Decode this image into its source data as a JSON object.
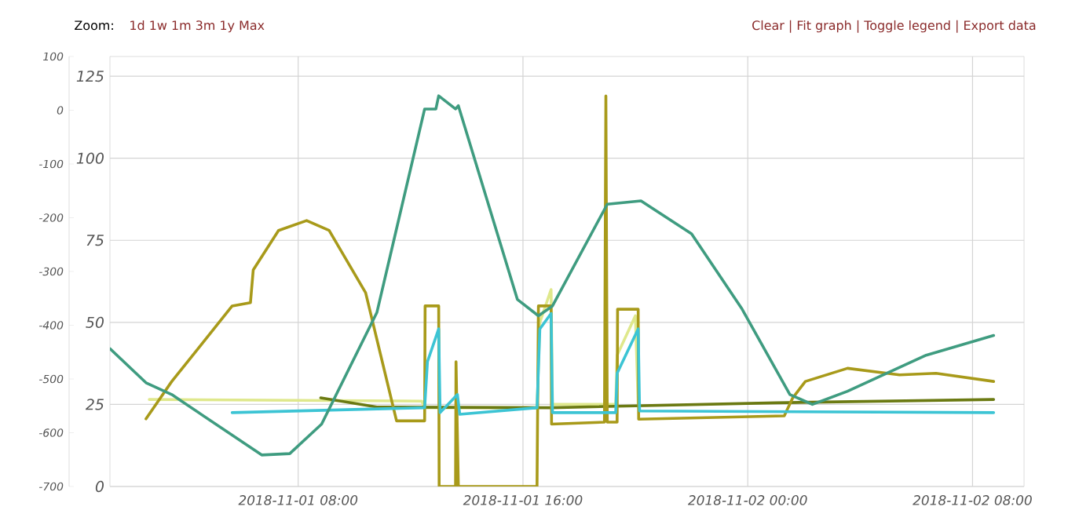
{
  "chart_data": {
    "type": "line",
    "marker": "none",
    "line_style": "solid",
    "grid": true,
    "annotations": [
      "Zoom:",
      "1d 1w 1m 3m 1y Max",
      "Clear |  Fit graph |  Toggle legend |  Export data"
    ],
    "xlim": [
      "2018-11-01T01:18",
      "2018-11-02T09:50"
    ],
    "xticks": [
      {
        "value": "2018-11-01T08:00",
        "label": "2018-11-01 08:00"
      },
      {
        "value": "2018-11-01T16:00",
        "label": "2018-11-01 16:00"
      },
      {
        "value": "2018-11-02T00:00",
        "label": "2018-11-02 00:00"
      },
      {
        "value": "2018-11-02T08:00",
        "label": "2018-11-02 08:00"
      }
    ],
    "ylim": [
      0,
      131
    ],
    "yticks": [
      0,
      25,
      50,
      75,
      100,
      125
    ],
    "y2lim": [
      -700,
      100
    ],
    "y2ticks": [
      -700,
      -600,
      -500,
      -400,
      -300,
      -200,
      -100,
      0,
      100
    ],
    "series": [
      {
        "color": "#dfe88c",
        "x": [
          "2018-11-01T02:42",
          "2018-11-01T12:24",
          "2018-11-01T12:30",
          "2018-11-01T16:30",
          "2018-11-01T16:36",
          "2018-11-01T17:00",
          "2018-11-01T17:03",
          "2018-11-01T19:18",
          "2018-11-01T19:21",
          "2018-11-01T20:00",
          "2018-11-01T20:06"
        ],
        "values": [
          26.5,
          26,
          24,
          24,
          50,
          60,
          25,
          25,
          40,
          52,
          25
        ]
      },
      {
        "color": "#6b7a12",
        "x": [
          "2018-11-01T08:48",
          "2018-11-01T10:48",
          "2018-11-01T17:00",
          "2018-11-02T01:00",
          "2018-11-02T08:45"
        ],
        "values": [
          27,
          24.2,
          24,
          25.5,
          26.5
        ]
      },
      {
        "color": "#a89a1a",
        "x": [
          "2018-11-01T02:35",
          "2018-11-01T03:30",
          "2018-11-01T05:39",
          "2018-11-01T06:18",
          "2018-11-01T06:24",
          "2018-11-01T07:18",
          "2018-11-01T08:18",
          "2018-11-01T09:06",
          "2018-11-01T10:24",
          "2018-11-01T11:30",
          "2018-11-01T12:30",
          "2018-11-01T12:31",
          "2018-11-01T13:00",
          "2018-11-01T13:01",
          "2018-11-01T13:36",
          "2018-11-01T13:37",
          "2018-11-01T13:42",
          "2018-11-01T16:30",
          "2018-11-01T16:33",
          "2018-11-01T17:00",
          "2018-11-01T17:01",
          "2018-11-01T18:54",
          "2018-11-01T18:57",
          "2018-11-01T19:00",
          "2018-11-01T19:21",
          "2018-11-01T19:22",
          "2018-11-01T20:06",
          "2018-11-01T20:07",
          "2018-11-02T01:18",
          "2018-11-02T01:36",
          "2018-11-02T02:03",
          "2018-11-02T03:33",
          "2018-11-02T05:24",
          "2018-11-02T06:42",
          "2018-11-02T08:45"
        ],
        "values": [
          20.6,
          32,
          55,
          56,
          66,
          78,
          81,
          78,
          59,
          20,
          20,
          55,
          55,
          0,
          0,
          38,
          0,
          0,
          55,
          55,
          19,
          19.6,
          119,
          19.6,
          19.6,
          54,
          54,
          20.5,
          21.5,
          27,
          32,
          36,
          34,
          34.5,
          32
        ]
      },
      {
        "color": "#3cc4d4",
        "x": [
          "2018-11-01T05:39",
          "2018-11-01T12:30",
          "2018-11-01T12:36",
          "2018-11-01T13:00",
          "2018-11-01T13:03",
          "2018-11-01T13:40",
          "2018-11-01T13:45",
          "2018-11-01T16:30",
          "2018-11-01T16:36",
          "2018-11-01T17:00",
          "2018-11-01T17:03",
          "2018-11-01T19:18",
          "2018-11-01T19:21",
          "2018-11-01T20:06",
          "2018-11-01T20:09",
          "2018-11-02T08:45"
        ],
        "values": [
          22.5,
          24,
          38,
          48,
          22.5,
          28,
          22,
          24,
          48,
          52.7,
          22.5,
          22.5,
          34.5,
          48,
          23,
          22.5
        ]
      },
      {
        "color": "#3f9c80",
        "x": [
          "2018-11-01T01:18",
          "2018-11-01T02:35",
          "2018-11-01T03:30",
          "2018-11-01T06:42",
          "2018-11-01T07:42",
          "2018-11-01T08:50",
          "2018-11-01T10:48",
          "2018-11-01T12:30",
          "2018-11-01T12:54",
          "2018-11-01T13:00",
          "2018-11-01T13:36",
          "2018-11-01T13:42",
          "2018-11-01T15:48",
          "2018-11-01T16:33",
          "2018-11-01T17:03",
          "2018-11-01T19:00",
          "2018-11-01T20:12",
          "2018-11-01T22:00",
          "2018-11-01T23:48",
          "2018-11-02T01:30",
          "2018-11-02T02:18",
          "2018-11-02T03:33",
          "2018-11-02T06:21",
          "2018-11-02T08:45"
        ],
        "values": [
          42,
          31.6,
          28,
          9.6,
          10,
          19,
          53,
          115,
          115,
          119,
          115,
          116,
          57,
          52,
          55,
          86,
          87,
          77,
          54,
          28,
          25,
          29,
          40,
          46
        ]
      }
    ]
  }
}
